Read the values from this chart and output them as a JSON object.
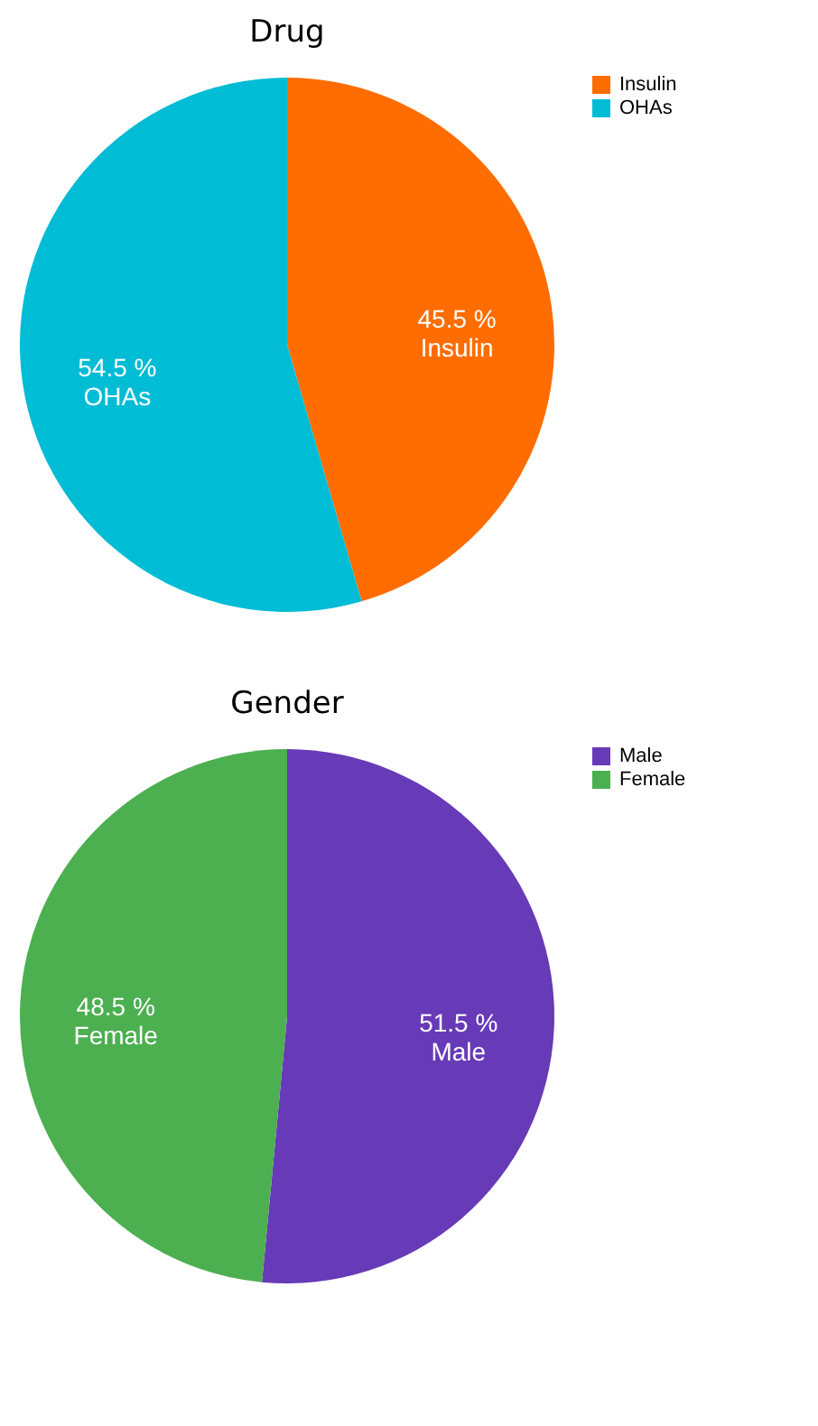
{
  "chart_data": [
    {
      "type": "pie",
      "title": "Drug",
      "categories": [
        "Insulin",
        "OHAs"
      ],
      "values": [
        45.5,
        54.5
      ],
      "value_labels": [
        "45.5 %",
        "54.5 %"
      ],
      "colors": [
        "#ff6d00",
        "#00bcd4"
      ],
      "legend": "right"
    },
    {
      "type": "pie",
      "title": "Gender",
      "categories": [
        "Male",
        "Female"
      ],
      "values": [
        51.5,
        48.5
      ],
      "value_labels": [
        "51.5 %",
        "48.5 %"
      ],
      "colors": [
        "#673ab7",
        "#4caf50"
      ],
      "legend": "right"
    }
  ]
}
